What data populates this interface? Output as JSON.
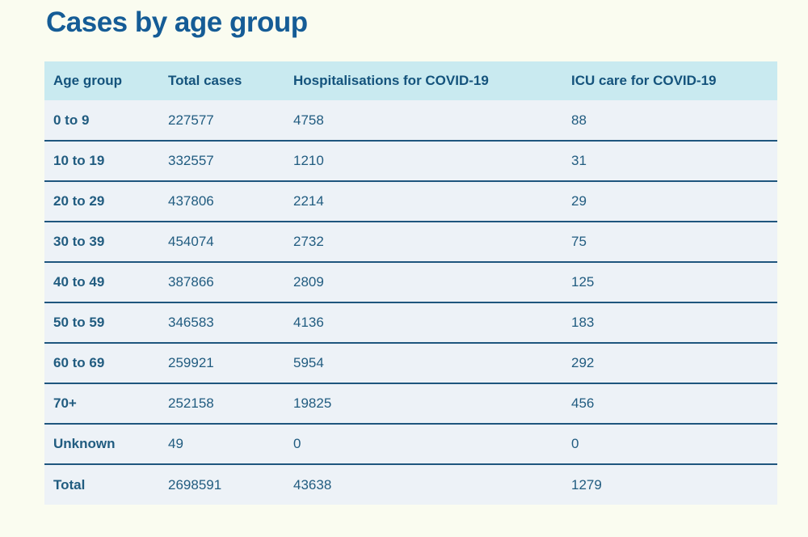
{
  "page": {
    "title": "Cases by age group",
    "background": "#fafcf0"
  },
  "colors": {
    "title": "#155c96",
    "header_bg": "#c9eaf0",
    "header_text": "#14537c",
    "row_bg": "#edf2f7",
    "cell_text": "#215c80",
    "divider": "#1f567e"
  },
  "table": {
    "columns": [
      "Age group",
      "Total cases",
      "Hospitalisations for COVID-19",
      "ICU care for COVID-19"
    ],
    "rows": [
      [
        "0 to 9",
        "227577",
        "4758",
        "88"
      ],
      [
        "10 to 19",
        "332557",
        "1210",
        "31"
      ],
      [
        "20 to 29",
        "437806",
        "2214",
        "29"
      ],
      [
        "30 to 39",
        "454074",
        "2732",
        "75"
      ],
      [
        "40 to 49",
        "387866",
        "2809",
        "125"
      ],
      [
        "50 to 59",
        "346583",
        "4136",
        "183"
      ],
      [
        "60 to 69",
        "259921",
        "5954",
        "292"
      ],
      [
        "70+",
        "252158",
        "19825",
        "456"
      ],
      [
        "Unknown",
        "49",
        "0",
        "0"
      ],
      [
        "Total",
        "2698591",
        "43638",
        "1279"
      ]
    ]
  },
  "chart_data": {
    "type": "table",
    "title": "Cases by age group",
    "columns": [
      "Age group",
      "Total cases",
      "Hospitalisations for COVID-19",
      "ICU care for COVID-19"
    ],
    "rows": [
      {
        "age_group": "0 to 9",
        "total_cases": 227577,
        "hospitalisations": 4758,
        "icu_care": 88
      },
      {
        "age_group": "10 to 19",
        "total_cases": 332557,
        "hospitalisations": 1210,
        "icu_care": 31
      },
      {
        "age_group": "20 to 29",
        "total_cases": 437806,
        "hospitalisations": 2214,
        "icu_care": 29
      },
      {
        "age_group": "30 to 39",
        "total_cases": 454074,
        "hospitalisations": 2732,
        "icu_care": 75
      },
      {
        "age_group": "40 to 49",
        "total_cases": 387866,
        "hospitalisations": 2809,
        "icu_care": 125
      },
      {
        "age_group": "50 to 59",
        "total_cases": 346583,
        "hospitalisations": 4136,
        "icu_care": 183
      },
      {
        "age_group": "60 to 69",
        "total_cases": 259921,
        "hospitalisations": 5954,
        "icu_care": 292
      },
      {
        "age_group": "70+",
        "total_cases": 252158,
        "hospitalisations": 19825,
        "icu_care": 456
      },
      {
        "age_group": "Unknown",
        "total_cases": 49,
        "hospitalisations": 0,
        "icu_care": 0
      },
      {
        "age_group": "Total",
        "total_cases": 2698591,
        "hospitalisations": 43638,
        "icu_care": 1279
      }
    ]
  }
}
